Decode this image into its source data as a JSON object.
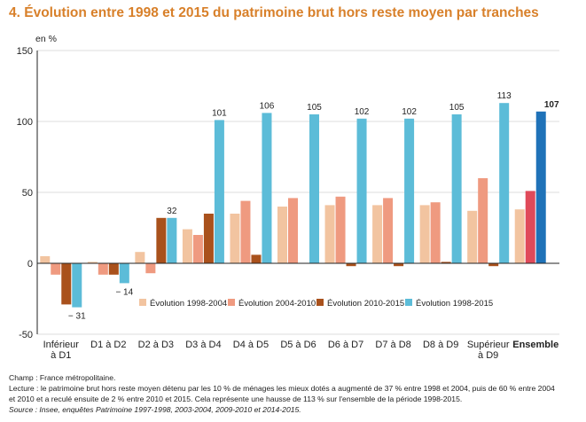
{
  "title": "4. Évolution entre 1998 et 2015 du patrimoine brut hors reste moyen par tranches",
  "notes": {
    "champ": "Champ : France métropolitaine.",
    "lecture1": "Lecture : le patrimoine brut hors reste moyen détenu par les 10 % de ménages les mieux dotés a augmenté de 37 % entre 1998 et 2004, puis de 60 % entre 2004",
    "lecture2": "et 2010 et a reculé ensuite de 2 % entre 2010 et 2015. Cela représente une hausse de 113 % sur l'ensemble de la période 1998-2015.",
    "source": "Source : Insee, enquêtes Patrimoine 1997-1998, 2003-2004, 2009-2010 et 2014-2015."
  },
  "chart_data": {
    "type": "bar",
    "ylabel": "en %",
    "ylim": [
      -50,
      150
    ],
    "yticks": [
      -50,
      0,
      50,
      100,
      150
    ],
    "grid": true,
    "legend_position": "inside-bottom-right",
    "categories": [
      [
        "Inférieur",
        "à D1"
      ],
      [
        "D1 à D2"
      ],
      [
        "D2 à D3"
      ],
      [
        "D3 à D4"
      ],
      [
        "D4 à D5"
      ],
      [
        "D5 à D6"
      ],
      [
        "D6 à D7"
      ],
      [
        "D7 à D8"
      ],
      [
        "D8 à D9"
      ],
      [
        "Supérieur",
        "à D9"
      ],
      [
        "Ensemble"
      ]
    ],
    "bold_category": "Ensemble",
    "series": [
      {
        "name": "Évolution 1998-2004",
        "color": "#f2c4a0",
        "values": [
          5,
          1,
          8,
          24,
          35,
          40,
          41,
          41,
          41,
          37,
          38
        ]
      },
      {
        "name": "Évolution 2004-2010",
        "color": "#ef9a80",
        "values": [
          -8,
          -8,
          -7,
          20,
          44,
          46,
          47,
          46,
          43,
          60,
          null
        ]
      },
      {
        "name": "Évolution 2010-2015",
        "color": "#a9511c",
        "values": [
          -29,
          -8,
          32,
          35,
          6,
          0,
          -2,
          -2,
          1,
          -2,
          null
        ]
      },
      {
        "name": "Évolution 1998-2015",
        "color": "#5cbcd8",
        "values": [
          -31,
          -14,
          32,
          101,
          106,
          105,
          102,
          102,
          105,
          113,
          null
        ]
      }
    ],
    "ensemble_bars": [
      {
        "value": 51,
        "color": "#e04a5a"
      },
      {
        "value": 107,
        "color": "#1f72b8"
      }
    ],
    "data_labels": [
      {
        "category": 0,
        "series": 3,
        "text": "− 31"
      },
      {
        "category": 1,
        "series": 3,
        "text": "− 14"
      },
      {
        "category": 2,
        "series": 3,
        "text": "32"
      },
      {
        "category": 3,
        "series": 3,
        "text": "101"
      },
      {
        "category": 4,
        "series": 3,
        "text": "106"
      },
      {
        "category": 5,
        "series": 3,
        "text": "105"
      },
      {
        "category": 6,
        "series": 3,
        "text": "102"
      },
      {
        "category": 7,
        "series": 3,
        "text": "102"
      },
      {
        "category": 8,
        "series": 3,
        "text": "105"
      },
      {
        "category": 9,
        "series": 3,
        "text": "113"
      },
      {
        "category": 10,
        "series": 3,
        "text": "107",
        "bold": true
      }
    ]
  }
}
